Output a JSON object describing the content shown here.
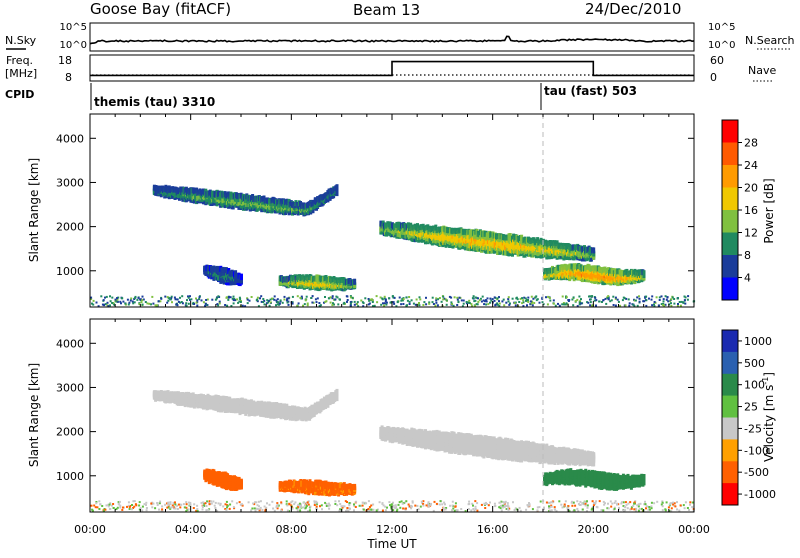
{
  "header": {
    "station": "Goose Bay (fitACF)",
    "beam": "Beam 13",
    "date": "24/Dec/2010"
  },
  "top_panels": {
    "nsky_label": "N.Sky",
    "nsky_ticks": [
      "10^5",
      "10^0"
    ],
    "nsearch_label": "N.Search",
    "nsearch_ticks": [
      "10^5",
      "10^0"
    ],
    "freq_label": "Freq.",
    "freq_unit": "[MHz]",
    "freq_ticks": [
      "18",
      "8"
    ],
    "nave_label": "Nave",
    "nave_ticks": [
      "60",
      "0"
    ],
    "cpid_label": "CPID",
    "cpid_modes": [
      {
        "label": "themis (tau) 3310",
        "start_hour": 0
      },
      {
        "label": "tau (fast) 503",
        "start_hour": 18
      }
    ],
    "freq_steps": [
      {
        "start": 0,
        "end": 12,
        "value": 10
      },
      {
        "start": 12,
        "end": 20,
        "value": 16
      },
      {
        "start": 20,
        "end": 24,
        "value": 10
      }
    ]
  },
  "power_colorbar": {
    "title": "Power [dB]",
    "ticks": [
      "28",
      "24",
      "20",
      "16",
      "12",
      "8",
      "4"
    ],
    "colors": [
      "#ff0000",
      "#ff5a00",
      "#ff9b00",
      "#f0c800",
      "#80c040",
      "#208a60",
      "#1a3c9a",
      "#0000ff"
    ]
  },
  "velocity_colorbar": {
    "title": "Velocity [m s",
    "title_sup": "-1",
    "title_end": "]",
    "ticks": [
      "1000",
      "500",
      "100",
      "25",
      "-25",
      "-100",
      "-500",
      "-1000"
    ],
    "colors": [
      "#1a2ab0",
      "#2a60b0",
      "#2a8a4a",
      "#60c040",
      "#c8c8c8",
      "#ffa000",
      "#ff6000",
      "#ff0000"
    ]
  },
  "chart_data": {
    "type": "heatmap",
    "xlabel": "Time UT",
    "ylabel": "Slant Range [km]",
    "x_ticks": [
      "00:00",
      "04:00",
      "08:00",
      "12:00",
      "16:00",
      "20:00",
      "00:00"
    ],
    "y_ticks": [
      "1000",
      "2000",
      "3000",
      "4000"
    ],
    "xlim_hours": [
      0,
      24
    ],
    "ylim_km": [
      180,
      4550
    ],
    "features": [
      {
        "t0": 2.5,
        "t1": 9.8,
        "r": 2700,
        "power": 14,
        "velocity": 0
      },
      {
        "t0": 7.5,
        "t1": 10.5,
        "r": 800,
        "power": 20,
        "velocity": -110
      },
      {
        "t0": 4.5,
        "t1": 6.0,
        "r": 1000,
        "power": 10,
        "velocity": -120
      },
      {
        "t0": 11.5,
        "t1": 20.0,
        "r": 1850,
        "power": 21,
        "velocity": 10
      },
      {
        "t0": 18.0,
        "t1": 22.0,
        "r": 1000,
        "power": 25,
        "velocity": 80
      }
    ]
  }
}
